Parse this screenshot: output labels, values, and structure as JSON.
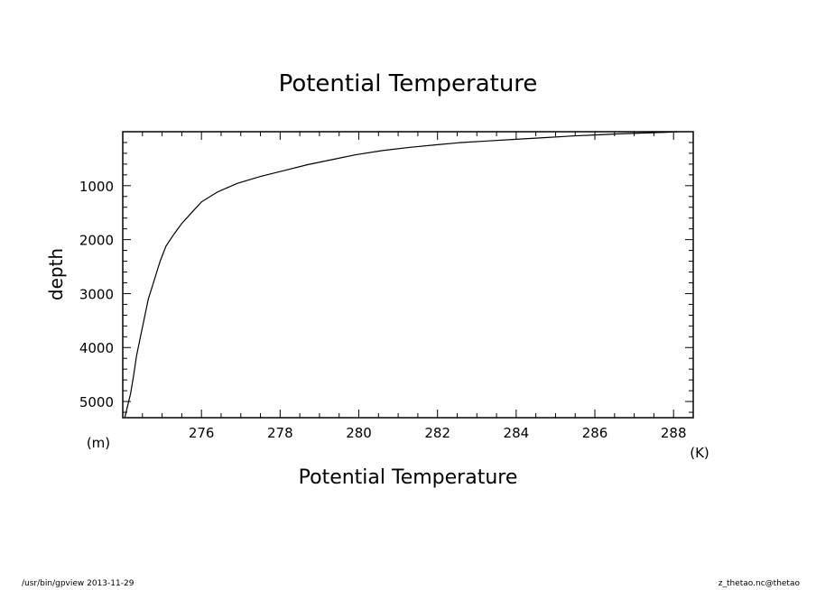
{
  "chart_data": {
    "type": "line",
    "title": "Potential Temperature",
    "xlabel": "Potential Temperature",
    "ylabel": "depth",
    "x_unit": "(K)",
    "y_unit": "(m)",
    "xlim": [
      274,
      288.5
    ],
    "ylim": [
      5300,
      0
    ],
    "y_inverted": true,
    "grid": false,
    "xticks": [
      276,
      278,
      280,
      282,
      284,
      286,
      288
    ],
    "yticks": [
      1000,
      2000,
      3000,
      4000,
      5000
    ],
    "series": [
      {
        "points": [
          [
            288.1,
            0
          ],
          [
            287.8,
            10
          ],
          [
            287.2,
            25
          ],
          [
            286.6,
            40
          ],
          [
            286.0,
            60
          ],
          [
            285.4,
            80
          ],
          [
            284.7,
            110
          ],
          [
            284.0,
            140
          ],
          [
            283.3,
            170
          ],
          [
            282.6,
            200
          ],
          [
            282.0,
            240
          ],
          [
            281.3,
            290
          ],
          [
            280.6,
            350
          ],
          [
            279.9,
            430
          ],
          [
            279.3,
            520
          ],
          [
            278.7,
            610
          ],
          [
            278.1,
            720
          ],
          [
            277.5,
            830
          ],
          [
            276.9,
            960
          ],
          [
            276.4,
            1120
          ],
          [
            276.0,
            1300
          ],
          [
            275.75,
            1500
          ],
          [
            275.5,
            1700
          ],
          [
            275.3,
            1900
          ],
          [
            275.1,
            2120
          ],
          [
            274.95,
            2400
          ],
          [
            274.8,
            2750
          ],
          [
            274.65,
            3100
          ],
          [
            274.55,
            3450
          ],
          [
            274.45,
            3800
          ],
          [
            274.35,
            4150
          ],
          [
            274.28,
            4500
          ],
          [
            274.2,
            4850
          ],
          [
            274.1,
            5150
          ],
          [
            274.05,
            5300
          ]
        ]
      }
    ]
  },
  "footer": {
    "left": "/usr/bin/gpview   2013-11-29",
    "right": "z_thetao.nc@thetao"
  }
}
